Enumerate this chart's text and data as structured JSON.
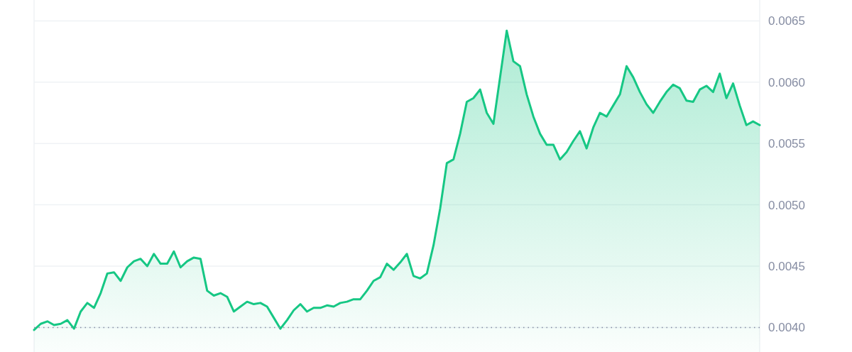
{
  "chart_data": {
    "type": "area",
    "categories": [
      null,
      null,
      null,
      null,
      null,
      null,
      null,
      null,
      null,
      null,
      null,
      null,
      null,
      null,
      null,
      null,
      null,
      null,
      null,
      null,
      null,
      null,
      null,
      null,
      null,
      null,
      null,
      null,
      null,
      null,
      null,
      null,
      null,
      null,
      null,
      null,
      null,
      null,
      null,
      null,
      null,
      null,
      null,
      null,
      null,
      null,
      null,
      null,
      null,
      null,
      null,
      null,
      null,
      null,
      null,
      null,
      null,
      null,
      null,
      null,
      null,
      null,
      null,
      null,
      null,
      null,
      null,
      null,
      null,
      null,
      null,
      null,
      null,
      null,
      null,
      null,
      null,
      null,
      null,
      null,
      null,
      null,
      null,
      null,
      null,
      null,
      null,
      null,
      null,
      null,
      null,
      null,
      null,
      null,
      null,
      null,
      null,
      null,
      null,
      null,
      null,
      null,
      null,
      null,
      null,
      null,
      null,
      null,
      null,
      null
    ],
    "series": [
      {
        "color": "#16c784",
        "values": [
          0.00398,
          0.00403,
          0.00405,
          0.00402,
          0.00403,
          0.00406,
          0.00399,
          0.00413,
          0.0042,
          0.00416,
          0.00428,
          0.00444,
          0.00445,
          0.00438,
          0.00449,
          0.00454,
          0.00456,
          0.0045,
          0.0046,
          0.00452,
          0.00452,
          0.00462,
          0.00449,
          0.00454,
          0.00457,
          0.00456,
          0.0043,
          0.00426,
          0.00428,
          0.00425,
          0.00413,
          0.00417,
          0.00421,
          0.00419,
          0.0042,
          0.00417,
          0.00408,
          0.00399,
          0.00406,
          0.00414,
          0.00419,
          0.00413,
          0.00416,
          0.00416,
          0.00418,
          0.00417,
          0.0042,
          0.00421,
          0.00423,
          0.00423,
          0.0043,
          0.00438,
          0.00441,
          0.00452,
          0.00447,
          0.00453,
          0.0046,
          0.00442,
          0.0044,
          0.00444,
          0.00467,
          0.00497,
          0.00534,
          0.00537,
          0.00558,
          0.00584,
          0.00587,
          0.00594,
          0.00575,
          0.00566,
          0.00604,
          0.00642,
          0.00617,
          0.00613,
          0.0059,
          0.00572,
          0.00558,
          0.00549,
          0.00549,
          0.00537,
          0.00543,
          0.00552,
          0.0056,
          0.00546,
          0.00563,
          0.00575,
          0.00572,
          0.00581,
          0.0059,
          0.00613,
          0.00604,
          0.00592,
          0.00582,
          0.00575,
          0.00584,
          0.00592,
          0.00598,
          0.00595,
          0.00585,
          0.00584,
          0.00594,
          0.00597,
          0.00592,
          0.00607,
          0.00587,
          0.00599,
          0.00581,
          0.00565,
          0.00568,
          0.00565
        ]
      }
    ],
    "ylim": [
      0.0038,
      0.00667
    ],
    "yticks": [
      {
        "value": 0.004,
        "label": "0.0040"
      },
      {
        "value": 0.0045,
        "label": "0.0045"
      },
      {
        "value": 0.005,
        "label": "0.0050"
      },
      {
        "value": 0.0055,
        "label": "0.0055"
      },
      {
        "value": 0.006,
        "label": "0.0060"
      },
      {
        "value": 0.0065,
        "label": "0.0065"
      }
    ],
    "grid": "y",
    "tick_labels": "y",
    "ref_lines": [
      {
        "axis": "y",
        "value": 0.004,
        "color": "#858ca2",
        "line_style": "dotted"
      }
    ]
  }
}
